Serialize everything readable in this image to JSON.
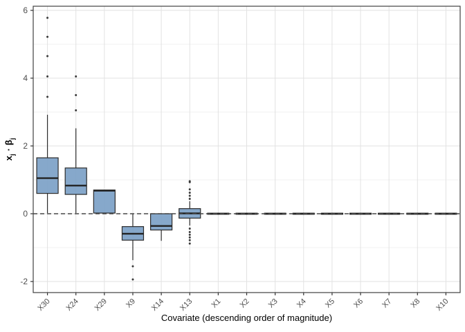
{
  "figure": {
    "xlabel": "Covariate (descending order of magnitude)",
    "ylabel_term1": "x",
    "ylabel_sub1": "j",
    "ylabel_operator": "·",
    "ylabel_term2": "β",
    "ylabel_sub2": "j"
  },
  "chart_data": {
    "type": "boxplot",
    "title": "",
    "xlabel": "Covariate (descending order of magnitude)",
    "ylabel": "x_j · β_j",
    "categories": [
      "X30",
      "X24",
      "X29",
      "X9",
      "X14",
      "X13",
      "X1",
      "X2",
      "X3",
      "X4",
      "X5",
      "X6",
      "X7",
      "X8",
      "X10"
    ],
    "yticks": [
      -2,
      0,
      2,
      4,
      6
    ],
    "minor_yticks": [
      -1,
      1,
      3,
      5
    ],
    "ylim": [
      -2.33,
      6.12
    ],
    "grid": true,
    "legend": "none",
    "reference_line": {
      "y": 0,
      "style": "dashed"
    },
    "boxes": [
      {
        "label": "X30",
        "q1": 0.6,
        "median": 1.05,
        "q3": 1.65,
        "whisker_low": 0.02,
        "whisker_high": 2.92,
        "outliers": [
          3.45,
          4.05,
          4.65,
          5.22,
          5.78
        ]
      },
      {
        "label": "X24",
        "q1": 0.57,
        "median": 0.83,
        "q3": 1.35,
        "whisker_low": 0.02,
        "whisker_high": 2.52,
        "outliers": [
          3.05,
          3.5,
          4.05
        ]
      },
      {
        "label": "X29",
        "q1": 0.02,
        "median": 0.68,
        "q3": 0.7,
        "whisker_low": 0.02,
        "whisker_high": 0.7,
        "outliers": []
      },
      {
        "label": "X9",
        "q1": -0.78,
        "median": -0.59,
        "q3": -0.38,
        "whisker_low": -1.37,
        "whisker_high": 0.0,
        "outliers": [
          -1.55,
          -1.94
        ]
      },
      {
        "label": "X14",
        "q1": -0.48,
        "median": -0.36,
        "q3": 0.0,
        "whisker_low": -0.8,
        "whisker_high": 0.0,
        "outliers": []
      },
      {
        "label": "X13",
        "q1": -0.13,
        "median": 0.01,
        "q3": 0.15,
        "whisker_low": -0.35,
        "whisker_high": 0.37,
        "outliers": [
          0.44,
          0.53,
          0.62,
          0.72,
          0.93,
          0.96,
          -0.44,
          -0.54,
          -0.62,
          -0.7,
          -0.78,
          -0.88
        ]
      },
      {
        "label": "X1",
        "q1": -0.015,
        "median": 0.0,
        "q3": 0.015,
        "whisker_low": -0.03,
        "whisker_high": 0.03,
        "outliers": []
      },
      {
        "label": "X2",
        "q1": -0.015,
        "median": 0.0,
        "q3": 0.015,
        "whisker_low": -0.03,
        "whisker_high": 0.03,
        "outliers": []
      },
      {
        "label": "X3",
        "q1": -0.015,
        "median": 0.0,
        "q3": 0.015,
        "whisker_low": -0.03,
        "whisker_high": 0.03,
        "outliers": []
      },
      {
        "label": "X4",
        "q1": -0.015,
        "median": 0.0,
        "q3": 0.015,
        "whisker_low": -0.03,
        "whisker_high": 0.03,
        "outliers": []
      },
      {
        "label": "X5",
        "q1": -0.015,
        "median": 0.0,
        "q3": 0.015,
        "whisker_low": -0.03,
        "whisker_high": 0.03,
        "outliers": []
      },
      {
        "label": "X6",
        "q1": -0.015,
        "median": 0.0,
        "q3": 0.015,
        "whisker_low": -0.03,
        "whisker_high": 0.03,
        "outliers": []
      },
      {
        "label": "X7",
        "q1": -0.015,
        "median": 0.0,
        "q3": 0.015,
        "whisker_low": -0.03,
        "whisker_high": 0.03,
        "outliers": []
      },
      {
        "label": "X8",
        "q1": -0.015,
        "median": 0.0,
        "q3": 0.015,
        "whisker_low": -0.03,
        "whisker_high": 0.03,
        "outliers": []
      },
      {
        "label": "X10",
        "q1": -0.015,
        "median": 0.0,
        "q3": 0.015,
        "whisker_low": -0.03,
        "whisker_high": 0.03,
        "outliers": []
      }
    ],
    "colors": {
      "box_fill": "#7CA1C7",
      "box_border": "#2B2B2B",
      "median": "#222222",
      "whisker": "#2B2B2B",
      "outlier": "#3A3A3A",
      "dashed_line": "#474747",
      "grid_major": "#E2E2E2",
      "grid_minor": "#F0F0F0",
      "panel_border": "#404040",
      "axis_text": "#4D4D4D",
      "background": "#FFFFFF"
    }
  }
}
